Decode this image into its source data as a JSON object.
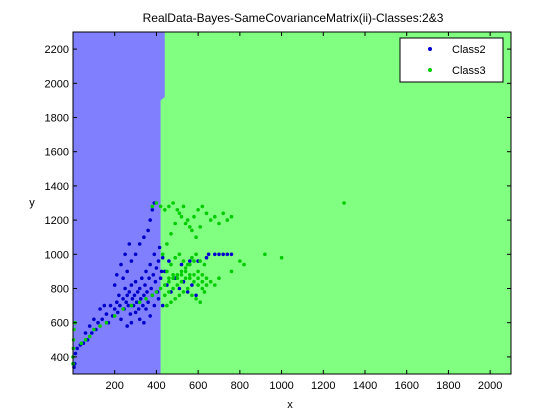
{
  "chart_data": {
    "type": "scatter",
    "title": "RealData-Bayes-SameCovarianceMatrix(ii)-Classes:2&3",
    "xlabel": "x",
    "ylabel": "y",
    "xlim": [
      0,
      2100
    ],
    "ylim": [
      300,
      2300
    ],
    "x_ticks": [
      "200",
      "400",
      "600",
      "800",
      "1000",
      "1200",
      "1400",
      "1600",
      "1800",
      "2000"
    ],
    "y_ticks": [
      "400",
      "600",
      "800",
      "1000",
      "1200",
      "1400",
      "1600",
      "1800",
      "2000",
      "2200"
    ],
    "grid": false,
    "legend": {
      "position": "top-right",
      "entries": [
        "Class2",
        "Class3"
      ]
    },
    "decision_regions": [
      {
        "class": "Class2",
        "color": "#8080ff",
        "boundary_x": [
          [
            300,
            420
          ],
          [
            1900,
            420
          ],
          [
            1920,
            440
          ],
          [
            2300,
            440
          ]
        ]
      },
      {
        "class": "Class3",
        "color": "#80ff80"
      }
    ],
    "series": [
      {
        "name": "Class2",
        "color": "#0000cc",
        "points": [
          [
            5,
            340
          ],
          [
            8,
            360
          ],
          [
            12,
            420
          ],
          [
            20,
            450
          ],
          [
            35,
            470
          ],
          [
            50,
            480
          ],
          [
            70,
            500
          ],
          [
            90,
            540
          ],
          [
            110,
            560
          ],
          [
            120,
            600
          ],
          [
            140,
            620
          ],
          [
            160,
            650
          ],
          [
            170,
            600
          ],
          [
            180,
            700
          ],
          [
            190,
            640
          ],
          [
            200,
            680
          ],
          [
            210,
            720
          ],
          [
            215,
            660
          ],
          [
            220,
            760
          ],
          [
            225,
            700
          ],
          [
            230,
            620
          ],
          [
            240,
            740
          ],
          [
            245,
            680
          ],
          [
            250,
            800
          ],
          [
            255,
            720
          ],
          [
            260,
            760
          ],
          [
            265,
            700
          ],
          [
            270,
            780
          ],
          [
            275,
            650
          ],
          [
            280,
            820
          ],
          [
            285,
            740
          ],
          [
            290,
            700
          ],
          [
            295,
            760
          ],
          [
            300,
            840
          ],
          [
            305,
            720
          ],
          [
            310,
            780
          ],
          [
            315,
            680
          ],
          [
            320,
            800
          ],
          [
            325,
            740
          ],
          [
            330,
            860
          ],
          [
            335,
            700
          ],
          [
            340,
            760
          ],
          [
            345,
            820
          ],
          [
            350,
            900
          ],
          [
            355,
            780
          ],
          [
            360,
            720
          ],
          [
            365,
            860
          ],
          [
            370,
            940
          ],
          [
            375,
            800
          ],
          [
            380,
            760
          ],
          [
            385,
            880
          ],
          [
            390,
            1000
          ],
          [
            395,
            840
          ],
          [
            400,
            920
          ],
          [
            405,
            780
          ],
          [
            410,
            960
          ],
          [
            415,
            1040
          ],
          [
            420,
            860
          ],
          [
            425,
            900
          ],
          [
            430,
            980
          ],
          [
            240,
            860
          ],
          [
            260,
            900
          ],
          [
            280,
            960
          ],
          [
            300,
            1000
          ],
          [
            320,
            1060
          ],
          [
            340,
            1100
          ],
          [
            360,
            1140
          ],
          [
            370,
            1200
          ],
          [
            380,
            1260
          ],
          [
            390,
            1300
          ],
          [
            200,
            820
          ],
          [
            210,
            880
          ],
          [
            230,
            940
          ],
          [
            250,
            1000
          ],
          [
            270,
            1060
          ],
          [
            150,
            700
          ],
          [
            130,
            680
          ],
          [
            100,
            620
          ],
          [
            80,
            580
          ],
          [
            60,
            540
          ],
          [
            350,
            680
          ],
          [
            370,
            640
          ],
          [
            390,
            700
          ],
          [
            410,
            740
          ],
          [
            430,
            700
          ],
          [
            300,
            660
          ],
          [
            320,
            620
          ],
          [
            340,
            600
          ],
          [
            280,
            600
          ],
          [
            260,
            580
          ],
          [
            650,
            1000
          ],
          [
            700,
            1000
          ],
          [
            720,
            1000
          ],
          [
            740,
            1000
          ],
          [
            760,
            1000
          ],
          [
            640,
            980
          ],
          [
            680,
            1000
          ],
          [
            600,
            960
          ],
          [
            560,
            960
          ],
          [
            520,
            940
          ],
          [
            450,
            820
          ],
          [
            470,
            780
          ],
          [
            490,
            860
          ],
          [
            510,
            800
          ],
          [
            530,
            840
          ],
          [
            550,
            780
          ],
          [
            570,
            820
          ],
          [
            590,
            760
          ],
          [
            440,
            900
          ],
          [
            460,
            960
          ]
        ]
      },
      {
        "name": "Class3",
        "color": "#00cc00",
        "points": [
          [
            0,
            360
          ],
          [
            0,
            400
          ],
          [
            2,
            450
          ],
          [
            3,
            500
          ],
          [
            5,
            560
          ],
          [
            10,
            600
          ],
          [
            40,
            480
          ],
          [
            60,
            500
          ],
          [
            80,
            520
          ],
          [
            100,
            560
          ],
          [
            130,
            580
          ],
          [
            160,
            600
          ],
          [
            200,
            640
          ],
          [
            240,
            680
          ],
          [
            280,
            700
          ],
          [
            320,
            720
          ],
          [
            350,
            740
          ],
          [
            380,
            760
          ],
          [
            400,
            780
          ],
          [
            420,
            800
          ],
          [
            440,
            820
          ],
          [
            460,
            840
          ],
          [
            480,
            860
          ],
          [
            500,
            880
          ],
          [
            520,
            900
          ],
          [
            540,
            920
          ],
          [
            560,
            940
          ],
          [
            580,
            960
          ],
          [
            600,
            900
          ],
          [
            620,
            880
          ],
          [
            440,
            760
          ],
          [
            460,
            780
          ],
          [
            480,
            800
          ],
          [
            500,
            820
          ],
          [
            520,
            840
          ],
          [
            540,
            860
          ],
          [
            560,
            880
          ],
          [
            580,
            840
          ],
          [
            600,
            820
          ],
          [
            620,
            800
          ],
          [
            450,
            700
          ],
          [
            470,
            720
          ],
          [
            490,
            740
          ],
          [
            510,
            760
          ],
          [
            530,
            780
          ],
          [
            550,
            800
          ],
          [
            570,
            760
          ],
          [
            590,
            740
          ],
          [
            610,
            720
          ],
          [
            630,
            780
          ],
          [
            430,
            1000
          ],
          [
            450,
            1060
          ],
          [
            470,
            1120
          ],
          [
            490,
            1180
          ],
          [
            510,
            1240
          ],
          [
            530,
            1280
          ],
          [
            550,
            1200
          ],
          [
            570,
            1140
          ],
          [
            590,
            1100
          ],
          [
            610,
            1160
          ],
          [
            440,
            1260
          ],
          [
            460,
            1280
          ],
          [
            480,
            1300
          ],
          [
            500,
            1260
          ],
          [
            520,
            1220
          ],
          [
            540,
            1180
          ],
          [
            560,
            1160
          ],
          [
            580,
            1220
          ],
          [
            600,
            1260
          ],
          [
            620,
            1280
          ],
          [
            640,
            1240
          ],
          [
            660,
            1200
          ],
          [
            680,
            1220
          ],
          [
            700,
            1180
          ],
          [
            720,
            1240
          ],
          [
            740,
            1200
          ],
          [
            760,
            1220
          ],
          [
            400,
            1300
          ],
          [
            420,
            1280
          ],
          [
            380,
            1280
          ],
          [
            450,
            900
          ],
          [
            470,
            940
          ],
          [
            490,
            980
          ],
          [
            510,
            1000
          ],
          [
            530,
            960
          ],
          [
            550,
            940
          ],
          [
            570,
            980
          ],
          [
            590,
            1000
          ],
          [
            610,
            960
          ],
          [
            630,
            940
          ],
          [
            920,
            1000
          ],
          [
            1000,
            980
          ],
          [
            1300,
            1300
          ],
          [
            800,
            960
          ],
          [
            820,
            940
          ],
          [
            760,
            900
          ],
          [
            700,
            860
          ],
          [
            680,
            820
          ],
          [
            660,
            840
          ],
          [
            640,
            860
          ],
          [
            460,
            860
          ],
          [
            480,
            880
          ],
          [
            500,
            860
          ],
          [
            520,
            880
          ],
          [
            540,
            900
          ],
          [
            560,
            860
          ],
          [
            580,
            880
          ],
          [
            600,
            860
          ],
          [
            620,
            840
          ],
          [
            640,
            820
          ]
        ]
      }
    ]
  },
  "colors": {
    "region_class2": "#8080ff",
    "region_class3": "#80ff80",
    "marker_class2": "#0000cc",
    "marker_class3": "#00cc00"
  }
}
